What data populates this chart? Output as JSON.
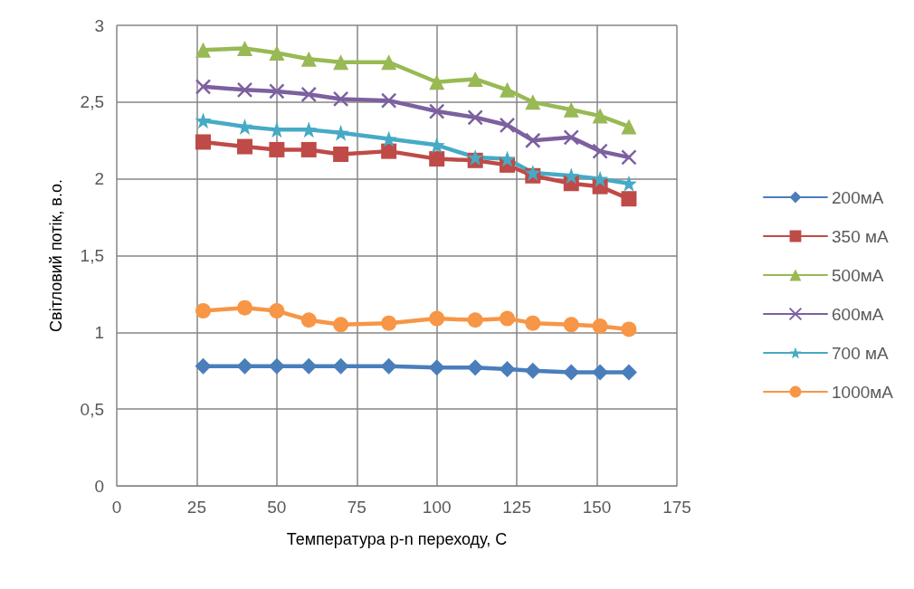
{
  "chart_data": {
    "type": "line",
    "xlabel": "Температура p-n переходу, С",
    "ylabel": "Світловий потік, в.о.",
    "x": [
      27,
      40,
      50,
      60,
      70,
      85,
      100,
      112,
      122,
      130,
      142,
      151,
      160
    ],
    "xlim": [
      0,
      175
    ],
    "xticks": [
      0,
      25,
      50,
      75,
      100,
      125,
      150,
      175
    ],
    "ylim": [
      0,
      3
    ],
    "yticks": [
      0,
      {
        "value": 0.5,
        "label": "0,5"
      },
      1,
      {
        "value": 1.5,
        "label": "1,5"
      },
      2,
      {
        "value": 2.5,
        "label": "2,5"
      },
      3
    ],
    "grid": true,
    "legend": "right",
    "series": [
      {
        "name": "200мА",
        "color": "#4a7ebb",
        "marker": "diamond",
        "values": [
          0.78,
          0.78,
          0.78,
          0.78,
          0.78,
          0.78,
          0.77,
          0.77,
          0.76,
          0.75,
          0.74,
          0.74,
          0.74
        ]
      },
      {
        "name": "350 мА",
        "color": "#be4b48",
        "marker": "square",
        "values": [
          2.24,
          2.21,
          2.19,
          2.19,
          2.16,
          2.18,
          2.13,
          2.12,
          2.09,
          2.02,
          1.97,
          1.95,
          1.87
        ]
      },
      {
        "name": "500мА",
        "color": "#98b954",
        "marker": "triangle",
        "values": [
          2.84,
          2.85,
          2.82,
          2.78,
          2.76,
          2.76,
          2.63,
          2.65,
          2.58,
          2.5,
          2.45,
          2.41,
          2.34
        ]
      },
      {
        "name": "600мА",
        "color": "#7d60a0",
        "marker": "cross",
        "values": [
          2.6,
          2.58,
          2.57,
          2.55,
          2.52,
          2.51,
          2.44,
          2.4,
          2.35,
          2.25,
          2.27,
          2.18,
          2.14
        ]
      },
      {
        "name": "700 мА",
        "color": "#46aac5",
        "marker": "star",
        "values": [
          2.38,
          2.34,
          2.32,
          2.32,
          2.3,
          2.26,
          2.22,
          2.14,
          2.13,
          2.04,
          2.02,
          2.0,
          1.97
        ]
      },
      {
        "name": "1000мА",
        "color": "#f79646",
        "marker": "circle",
        "values": [
          1.14,
          1.16,
          1.14,
          1.08,
          1.05,
          1.06,
          1.09,
          1.08,
          1.09,
          1.06,
          1.05,
          1.04,
          1.02
        ]
      }
    ]
  }
}
